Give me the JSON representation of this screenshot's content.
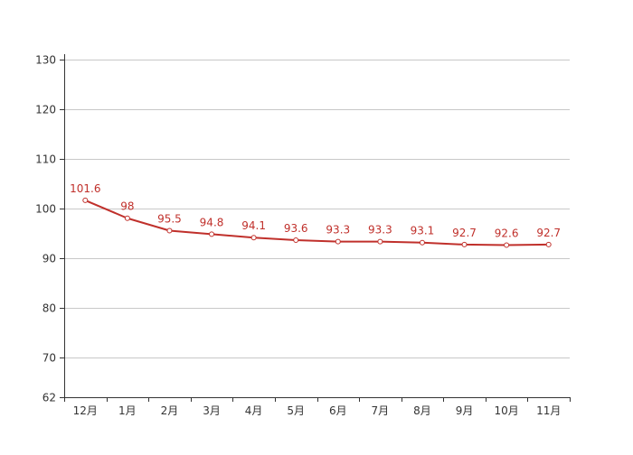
{
  "chart_data": {
    "type": "line",
    "title": "",
    "xlabel": "",
    "ylabel": "",
    "categories": [
      "12月",
      "1月",
      "2月",
      "3月",
      "4月",
      "5月",
      "6月",
      "7月",
      "8月",
      "9月",
      "10月",
      "11月"
    ],
    "series": [
      {
        "values": [
          101.6,
          98,
          95.5,
          94.8,
          94.1,
          93.6,
          93.3,
          93.3,
          93.1,
          92.7,
          92.6,
          92.7
        ],
        "labels": [
          "101.6",
          "98",
          "95.5",
          "94.8",
          "94.1",
          "93.6",
          "93.3",
          "93.3",
          "93.1",
          "92.7",
          "92.6",
          "92.7"
        ]
      }
    ],
    "ylim": [
      62,
      131
    ],
    "yticks": [
      62,
      70,
      80,
      90,
      100,
      110,
      120,
      130
    ],
    "ytick_labels": [
      "62",
      "70",
      "80",
      "90",
      "100",
      "110",
      "120",
      "130"
    ],
    "grid": true,
    "legend": "none",
    "colors": {
      "line": "#c0302b",
      "marker_fill": "#ffffff",
      "grid": "#c8c8c8",
      "axis": "#333333"
    }
  }
}
